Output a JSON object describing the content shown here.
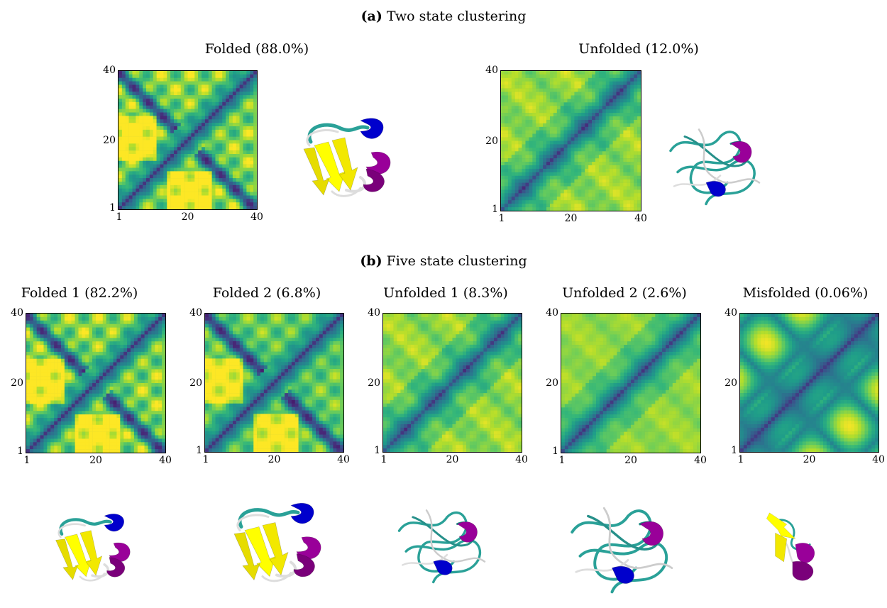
{
  "sections": [
    {
      "prefix": "(a)",
      "label": "Two state clustering"
    },
    {
      "prefix": "(b)",
      "label": "Five state clustering"
    }
  ],
  "colors": {
    "low": "#440154",
    "mid": "#21918c",
    "high": "#fde725",
    "helix_a": "#0000cc",
    "helix_b": "#990099",
    "sheet": "#ffff00",
    "coil": "#2aa198",
    "turn": "#dddddd"
  },
  "chart_data": [
    {
      "type": "heatmap",
      "title": "Folded (88.0%)",
      "xlim": [
        1,
        40
      ],
      "ylim": [
        1,
        40
      ],
      "xticks": [
        "1",
        "20",
        "40"
      ],
      "yticks": [
        "1",
        "20",
        "40"
      ],
      "pattern": "folded",
      "structure": "folded"
    },
    {
      "type": "heatmap",
      "title": "Unfolded (12.0%)",
      "xlim": [
        1,
        40
      ],
      "ylim": [
        1,
        40
      ],
      "xticks": [
        "1",
        "20",
        "40"
      ],
      "yticks": [
        "1",
        "20",
        "40"
      ],
      "pattern": "unfolded",
      "structure": "unfolded"
    },
    {
      "type": "heatmap",
      "title": "Folded 1 (82.2%)",
      "xlim": [
        1,
        40
      ],
      "ylim": [
        1,
        40
      ],
      "xticks": [
        "1",
        "20",
        "40"
      ],
      "yticks": [
        "1",
        "20",
        "40"
      ],
      "pattern": "folded",
      "structure": "folded"
    },
    {
      "type": "heatmap",
      "title": "Folded 2 (6.8%)",
      "xlim": [
        1,
        40
      ],
      "ylim": [
        1,
        40
      ],
      "xticks": [
        "1",
        "20",
        "40"
      ],
      "yticks": [
        "1",
        "20",
        "40"
      ],
      "pattern": "folded2",
      "structure": "folded"
    },
    {
      "type": "heatmap",
      "title": "Unfolded 1 (8.3%)",
      "xlim": [
        1,
        40
      ],
      "ylim": [
        1,
        40
      ],
      "xticks": [
        "1",
        "20",
        "40"
      ],
      "yticks": [
        "1",
        "20",
        "40"
      ],
      "pattern": "unfolded",
      "structure": "unfolded"
    },
    {
      "type": "heatmap",
      "title": "Unfolded 2 (2.6%)",
      "xlim": [
        1,
        40
      ],
      "ylim": [
        1,
        40
      ],
      "xticks": [
        "1",
        "20",
        "40"
      ],
      "yticks": [
        "1",
        "20",
        "40"
      ],
      "pattern": "unfolded2",
      "structure": "unfolded"
    },
    {
      "type": "heatmap",
      "title": "Misfolded (0.06%)",
      "xlim": [
        1,
        40
      ],
      "ylim": [
        1,
        40
      ],
      "xticks": [
        "1",
        "20",
        "40"
      ],
      "yticks": [
        "1",
        "20",
        "40"
      ],
      "pattern": "misfolded",
      "structure": "misfolded"
    }
  ]
}
